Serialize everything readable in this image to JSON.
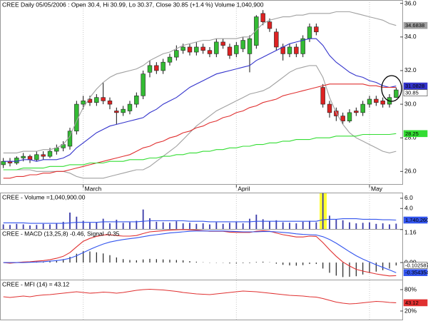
{
  "chart_data": [
    {
      "type": "candlestick",
      "title": "CREE Daily 05/05/2006 : Open 30.4, Hi 30.99, Lo 30.37, Close 30.85 (+1.4 %) Volume 1,040,900",
      "categories": [
        null,
        null,
        null,
        null,
        null,
        null,
        null,
        null,
        null,
        null,
        null,
        null,
        "March",
        null,
        null,
        null,
        null,
        null,
        null,
        null,
        null,
        null,
        null,
        null,
        null,
        null,
        null,
        null,
        null,
        null,
        null,
        null,
        null,
        null,
        null,
        "April",
        null,
        null,
        null,
        null,
        null,
        null,
        null,
        null,
        null,
        null,
        null,
        null,
        null,
        null,
        null,
        null,
        null,
        null,
        null,
        "May",
        null,
        null,
        null,
        null
      ],
      "open": [
        26.4,
        26.6,
        26.5,
        26.8,
        26.9,
        26.7,
        27.0,
        26.9,
        27.2,
        27.4,
        27.5,
        28.4,
        30.0,
        30.3,
        30.1,
        30.4,
        30.2,
        29.6,
        29.5,
        29.6,
        30.0,
        30.5,
        31.9,
        32.3,
        32.0,
        32.5,
        32.8,
        33.2,
        33.4,
        33.1,
        33.4,
        33.2,
        33.0,
        33.7,
        33.4,
        33.0,
        33.3,
        33.0,
        33.5,
        35.4,
        34.9,
        34.3,
        33.4,
        33.0,
        33.4,
        33.0,
        33.9,
        34.6,
        31.0,
        30.0,
        29.6,
        29.3,
        29.0,
        29.6,
        29.5,
        30.0,
        30.3,
        30.2,
        30.0,
        30.4
      ],
      "high": [
        26.8,
        26.8,
        26.9,
        27.1,
        27.0,
        27.2,
        27.2,
        27.4,
        27.6,
        27.8,
        28.6,
        30.2,
        30.5,
        30.5,
        30.6,
        31.3,
        30.4,
        29.8,
        29.9,
        30.2,
        30.7,
        32.0,
        32.6,
        32.5,
        32.7,
        33.0,
        33.5,
        33.6,
        33.6,
        33.7,
        33.6,
        33.4,
        33.9,
        33.9,
        33.6,
        33.7,
        34.0,
        34.1,
        35.3,
        35.6,
        35.1,
        34.5,
        33.6,
        33.6,
        33.6,
        34.1,
        34.8,
        34.8,
        31.2,
        30.2,
        29.8,
        29.5,
        29.7,
        29.8,
        30.2,
        30.5,
        30.5,
        30.4,
        30.6,
        30.99
      ],
      "low": [
        26.2,
        26.3,
        26.4,
        26.6,
        26.5,
        26.6,
        26.7,
        26.8,
        27.0,
        27.2,
        27.3,
        28.2,
        29.7,
        29.9,
        29.9,
        30.0,
        29.7,
        28.8,
        29.3,
        29.4,
        29.8,
        30.3,
        31.6,
        31.8,
        31.8,
        32.3,
        32.6,
        33.0,
        32.9,
        32.9,
        33.0,
        32.8,
        32.8,
        33.3,
        32.7,
        32.8,
        33.1,
        31.9,
        33.3,
        34.7,
        34.3,
        33.2,
        32.6,
        32.8,
        32.8,
        32.8,
        33.7,
        34.1,
        29.8,
        29.2,
        29.0,
        28.8,
        28.9,
        29.3,
        29.3,
        29.8,
        29.9,
        29.8,
        29.8,
        30.37
      ],
      "close": [
        26.6,
        26.5,
        26.8,
        26.9,
        26.7,
        27.0,
        26.9,
        27.2,
        27.4,
        27.6,
        28.4,
        30.0,
        30.2,
        30.1,
        30.4,
        30.2,
        30.0,
        29.5,
        29.7,
        30.0,
        30.5,
        31.8,
        32.3,
        32.0,
        32.5,
        32.8,
        33.2,
        33.4,
        33.1,
        33.4,
        33.2,
        33.0,
        33.7,
        33.5,
        32.9,
        33.5,
        33.8,
        33.9,
        35.2,
        34.9,
        34.5,
        33.4,
        33.0,
        33.4,
        33.0,
        33.9,
        34.6,
        34.3,
        30.0,
        29.5,
        29.3,
        29.0,
        29.5,
        29.5,
        30.0,
        30.3,
        30.1,
        30.0,
        30.4,
        30.85
      ],
      "up_color": "#33bb33",
      "down_color": "#dd2222",
      "end_label": true,
      "series": [
        {
          "color": "#a0a0a0",
          "end_label": true,
          "values": [
            27.1,
            27.1,
            27.1,
            27.2,
            27.2,
            27.2,
            27.3,
            27.3,
            27.4,
            27.6,
            28.1,
            29.0,
            29.8,
            30.4,
            30.9,
            31.3,
            31.6,
            31.8,
            31.9,
            32.0,
            32.1,
            32.3,
            32.6,
            32.8,
            33.0,
            33.1,
            33.3,
            33.5,
            33.6,
            33.7,
            33.8,
            33.8,
            33.9,
            33.9,
            33.9,
            33.9,
            34.0,
            34.0,
            34.4,
            34.8,
            35.0,
            35.1,
            35.2,
            35.2,
            35.3,
            35.3,
            35.4,
            35.4,
            35.4,
            35.4,
            35.5,
            35.5,
            35.5,
            35.4,
            35.3,
            35.2,
            35.1,
            35.0,
            34.8,
            34.6838
          ]
        },
        {
          "color": "#a0a0a0",
          "values": [
            26.1,
            26.1,
            26.1,
            26.1,
            26.1,
            26.0,
            26.0,
            26.0,
            26.0,
            26.0,
            25.9,
            25.7,
            25.6,
            25.6,
            25.6,
            25.6,
            25.7,
            25.8,
            25.9,
            26.0,
            26.1,
            26.1,
            26.3,
            26.6,
            26.9,
            27.2,
            27.5,
            27.9,
            28.3,
            28.7,
            29.0,
            29.3,
            29.6,
            29.8,
            30.0,
            30.2,
            30.4,
            30.6,
            30.7,
            30.8,
            31.0,
            31.3,
            31.6,
            31.9,
            32.1,
            32.2,
            32.3,
            32.3,
            31.6,
            30.4,
            29.5,
            28.8,
            28.3,
            28.0,
            27.8,
            27.6,
            27.4,
            27.2,
            27.1,
            27.2
          ]
        },
        {
          "color": "#3333cc",
          "end_label": true,
          "values": [
            26.6,
            26.6,
            26.6,
            26.7,
            26.7,
            26.6,
            26.7,
            26.7,
            26.7,
            26.8,
            27.0,
            27.4,
            27.7,
            28.0,
            28.3,
            28.5,
            28.7,
            28.8,
            28.9,
            29.0,
            29.1,
            29.2,
            29.5,
            29.7,
            30.0,
            30.2,
            30.4,
            30.7,
            31.0,
            31.2,
            31.4,
            31.6,
            31.8,
            31.9,
            32.0,
            32.1,
            32.2,
            32.3,
            32.6,
            32.8,
            33.0,
            33.2,
            33.4,
            33.6,
            33.7,
            33.8,
            33.9,
            33.9,
            33.5,
            32.9,
            32.5,
            32.2,
            31.9,
            31.7,
            31.6,
            31.4,
            31.3,
            31.1,
            31.0,
            31.0828
          ]
        },
        {
          "color": "#e03030",
          "values": [
            25.6,
            25.6,
            25.7,
            25.7,
            25.8,
            25.8,
            25.9,
            25.9,
            26.0,
            26.0,
            26.1,
            26.2,
            26.3,
            26.4,
            26.5,
            26.6,
            26.7,
            26.8,
            26.9,
            27.0,
            27.2,
            27.4,
            27.5,
            27.7,
            27.8,
            28.0,
            28.1,
            28.3,
            28.4,
            28.6,
            28.7,
            28.9,
            29.0,
            29.2,
            29.3,
            29.5,
            29.6,
            29.8,
            29.9,
            30.1,
            30.2,
            30.3,
            30.5,
            30.6,
            30.7,
            30.8,
            30.9,
            31.0,
            31.1,
            31.2,
            31.2,
            31.2,
            31.2,
            31.2,
            31.2,
            31.1,
            31.1,
            31.0,
            31.0,
            31.0
          ]
        },
        {
          "color": "#33dd33",
          "end_label": true,
          "values": [
            26.1,
            26.1,
            26.1,
            26.2,
            26.2,
            26.2,
            26.2,
            26.3,
            26.3,
            26.3,
            26.4,
            26.4,
            26.4,
            26.5,
            26.5,
            26.5,
            26.6,
            26.6,
            26.6,
            26.7,
            26.7,
            26.7,
            26.8,
            26.8,
            26.9,
            26.9,
            27.0,
            27.0,
            27.1,
            27.1,
            27.2,
            27.2,
            27.3,
            27.3,
            27.4,
            27.4,
            27.5,
            27.5,
            27.6,
            27.6,
            27.7,
            27.7,
            27.8,
            27.8,
            27.9,
            27.9,
            27.9,
            28.0,
            28.0,
            28.0,
            28.1,
            28.1,
            28.1,
            28.1,
            28.2,
            28.2,
            28.2,
            28.2,
            28.2,
            28.25
          ]
        }
      ],
      "ylim": [
        25.25,
        36.2
      ],
      "yticks": [
        {
          "value": 26,
          "label": "26.0"
        },
        {
          "value": 28,
          "label": "28.0"
        },
        {
          "value": 30,
          "label": "30.0"
        },
        {
          "value": 32,
          "label": "32.0"
        },
        {
          "value": 34,
          "label": "34.0"
        },
        {
          "value": 36,
          "label": "36.0"
        }
      ]
    },
    {
      "type": "volume",
      "title": "CREE - Volume =1,040,900.00",
      "color": "#3a3aa8",
      "values": [
        0.9,
        0.8,
        1.0,
        0.9,
        0.7,
        0.8,
        1.0,
        0.9,
        1.1,
        1.4,
        3.2,
        2.4,
        1.6,
        1.2,
        1.3,
        2.0,
        1.1,
        1.8,
        1.2,
        1.3,
        1.6,
        3.8,
        2.1,
        1.4,
        1.3,
        1.2,
        1.5,
        1.1,
        1.2,
        1.0,
        1.1,
        0.9,
        1.3,
        1.0,
        1.2,
        1.4,
        1.1,
        2.0,
        2.8,
        1.9,
        1.5,
        1.7,
        1.3,
        1.2,
        1.1,
        1.4,
        1.6,
        1.3,
        7.0,
        2.6,
        1.9,
        1.7,
        1.3,
        1.1,
        1.2,
        1.3,
        1.0,
        1.1,
        0.9,
        1.0409
      ],
      "series": [
        {
          "color": "#3355ee",
          "end_label": true,
          "values": [
            1.2,
            1.2,
            1.2,
            1.2,
            1.1,
            1.1,
            1.1,
            1.1,
            1.1,
            1.1,
            1.2,
            1.3,
            1.3,
            1.3,
            1.3,
            1.4,
            1.4,
            1.4,
            1.4,
            1.4,
            1.4,
            1.5,
            1.6,
            1.6,
            1.6,
            1.6,
            1.6,
            1.6,
            1.5,
            1.5,
            1.5,
            1.4,
            1.4,
            1.4,
            1.4,
            1.4,
            1.4,
            1.4,
            1.5,
            1.5,
            1.5,
            1.5,
            1.5,
            1.5,
            1.5,
            1.5,
            1.5,
            1.5,
            1.8,
            1.9,
            1.9,
            2.0,
            2.0,
            2.0,
            1.9,
            1.9,
            1.9,
            1.8,
            1.8,
            1.74026
          ],
          "value_labels": [
            null,
            null,
            null,
            null,
            null,
            null,
            null,
            null,
            null,
            null,
            null,
            null,
            null,
            null,
            null,
            null,
            null,
            null,
            null,
            null,
            null,
            null,
            null,
            null,
            null,
            null,
            null,
            null,
            null,
            null,
            null,
            null,
            null,
            null,
            null,
            null,
            null,
            null,
            null,
            null,
            null,
            null,
            null,
            null,
            null,
            null,
            null,
            null,
            null,
            null,
            null,
            null,
            null,
            null,
            null,
            null,
            null,
            null,
            null,
            "1,740,260"
          ]
        }
      ],
      "ylim": [
        0,
        7.1
      ],
      "yticks": [
        {
          "value": 4,
          "label": "4.0"
        },
        {
          "value": 6,
          "label": "6.0"
        }
      ]
    },
    {
      "type": "macd",
      "title": "CREE - MACD (13,25,8) -0.46, Signal -0.35",
      "color": "#222222",
      "end_label": true,
      "values": [
        0,
        -0.02,
        0,
        0.02,
        0.02,
        0.03,
        0.04,
        0.05,
        0.08,
        0.12,
        0.2,
        0.31,
        0.4,
        0.39,
        0.36,
        0.32,
        0.26,
        0.18,
        0.12,
        0.09,
        0.08,
        0.11,
        0.13,
        0.12,
        0.11,
        0.1,
        0.09,
        0.08,
        0.05,
        0.03,
        0.01,
        -0.01,
        -0.01,
        -0.01,
        -0.03,
        -0.03,
        -0.02,
        -0.02,
        0.02,
        0.03,
        0.01,
        -0.04,
        -0.08,
        -0.1,
        -0.11,
        -0.09,
        -0.05,
        -0.05,
        -0.21,
        -0.36,
        -0.46,
        -0.51,
        -0.5,
        -0.48,
        -0.42,
        -0.37,
        -0.32,
        -0.27,
        -0.21,
        -0.102587
      ],
      "series": [
        {
          "color": "#e03030",
          "values": [
            0,
            -0.02,
            0,
            0.02,
            0.03,
            0.05,
            0.07,
            0.1,
            0.15,
            0.22,
            0.35,
            0.55,
            0.75,
            0.85,
            0.92,
            0.97,
            0.98,
            0.95,
            0.93,
            0.93,
            0.95,
            1.02,
            1.08,
            1.1,
            1.12,
            1.14,
            1.15,
            1.16,
            1.15,
            1.14,
            1.12,
            1.1,
            1.1,
            1.1,
            1.07,
            1.06,
            1.06,
            1.06,
            1.1,
            1.12,
            1.1,
            1.04,
            0.98,
            0.94,
            0.9,
            0.9,
            0.93,
            0.92,
            0.7,
            0.45,
            0.22,
            0.02,
            -0.12,
            -0.24,
            -0.3,
            -0.35,
            -0.4,
            -0.44,
            -0.47,
            -0.46
          ]
        },
        {
          "color": "#3355ee",
          "end_label": true,
          "values": [
            0,
            0,
            0,
            0,
            0.01,
            0.02,
            0.03,
            0.05,
            0.07,
            0.1,
            0.15,
            0.24,
            0.35,
            0.46,
            0.56,
            0.65,
            0.72,
            0.77,
            0.81,
            0.84,
            0.87,
            0.91,
            0.95,
            0.98,
            1.01,
            1.04,
            1.06,
            1.08,
            1.1,
            1.11,
            1.11,
            1.11,
            1.11,
            1.11,
            1.1,
            1.09,
            1.08,
            1.08,
            1.08,
            1.09,
            1.09,
            1.08,
            1.06,
            1.04,
            1.01,
            0.99,
            0.98,
            0.97,
            0.91,
            0.81,
            0.68,
            0.53,
            0.38,
            0.24,
            0.12,
            0.02,
            -0.08,
            -0.17,
            -0.26,
            -0.354354
          ]
        }
      ],
      "ylim": [
        -0.6,
        1.18
      ],
      "yticks": [
        {
          "value": 0,
          "label": "0.00"
        },
        1.16
      ]
    },
    {
      "type": "line",
      "title": "CREE - MFI (14) = 43.12",
      "series": [
        {
          "color": "#e03030",
          "end_label": true,
          "values": [
            60,
            58,
            60,
            62,
            60,
            63,
            65,
            66,
            68,
            70,
            72,
            74,
            72,
            70,
            71,
            73,
            72,
            70,
            72,
            75,
            78,
            80,
            81,
            80,
            79,
            77,
            75,
            72,
            70,
            68,
            67,
            66,
            68,
            70,
            72,
            74,
            76,
            75,
            74,
            72,
            70,
            68,
            66,
            64,
            63,
            62,
            60,
            59,
            55,
            50,
            45,
            42,
            40,
            41,
            43,
            45,
            47,
            46,
            44,
            43.12
          ]
        }
      ],
      "ylim": [
        -4,
        108
      ],
      "yticks": [
        {
          "value": 20,
          "label": "20%"
        },
        {
          "value": 80,
          "label": "80%"
        }
      ]
    }
  ]
}
